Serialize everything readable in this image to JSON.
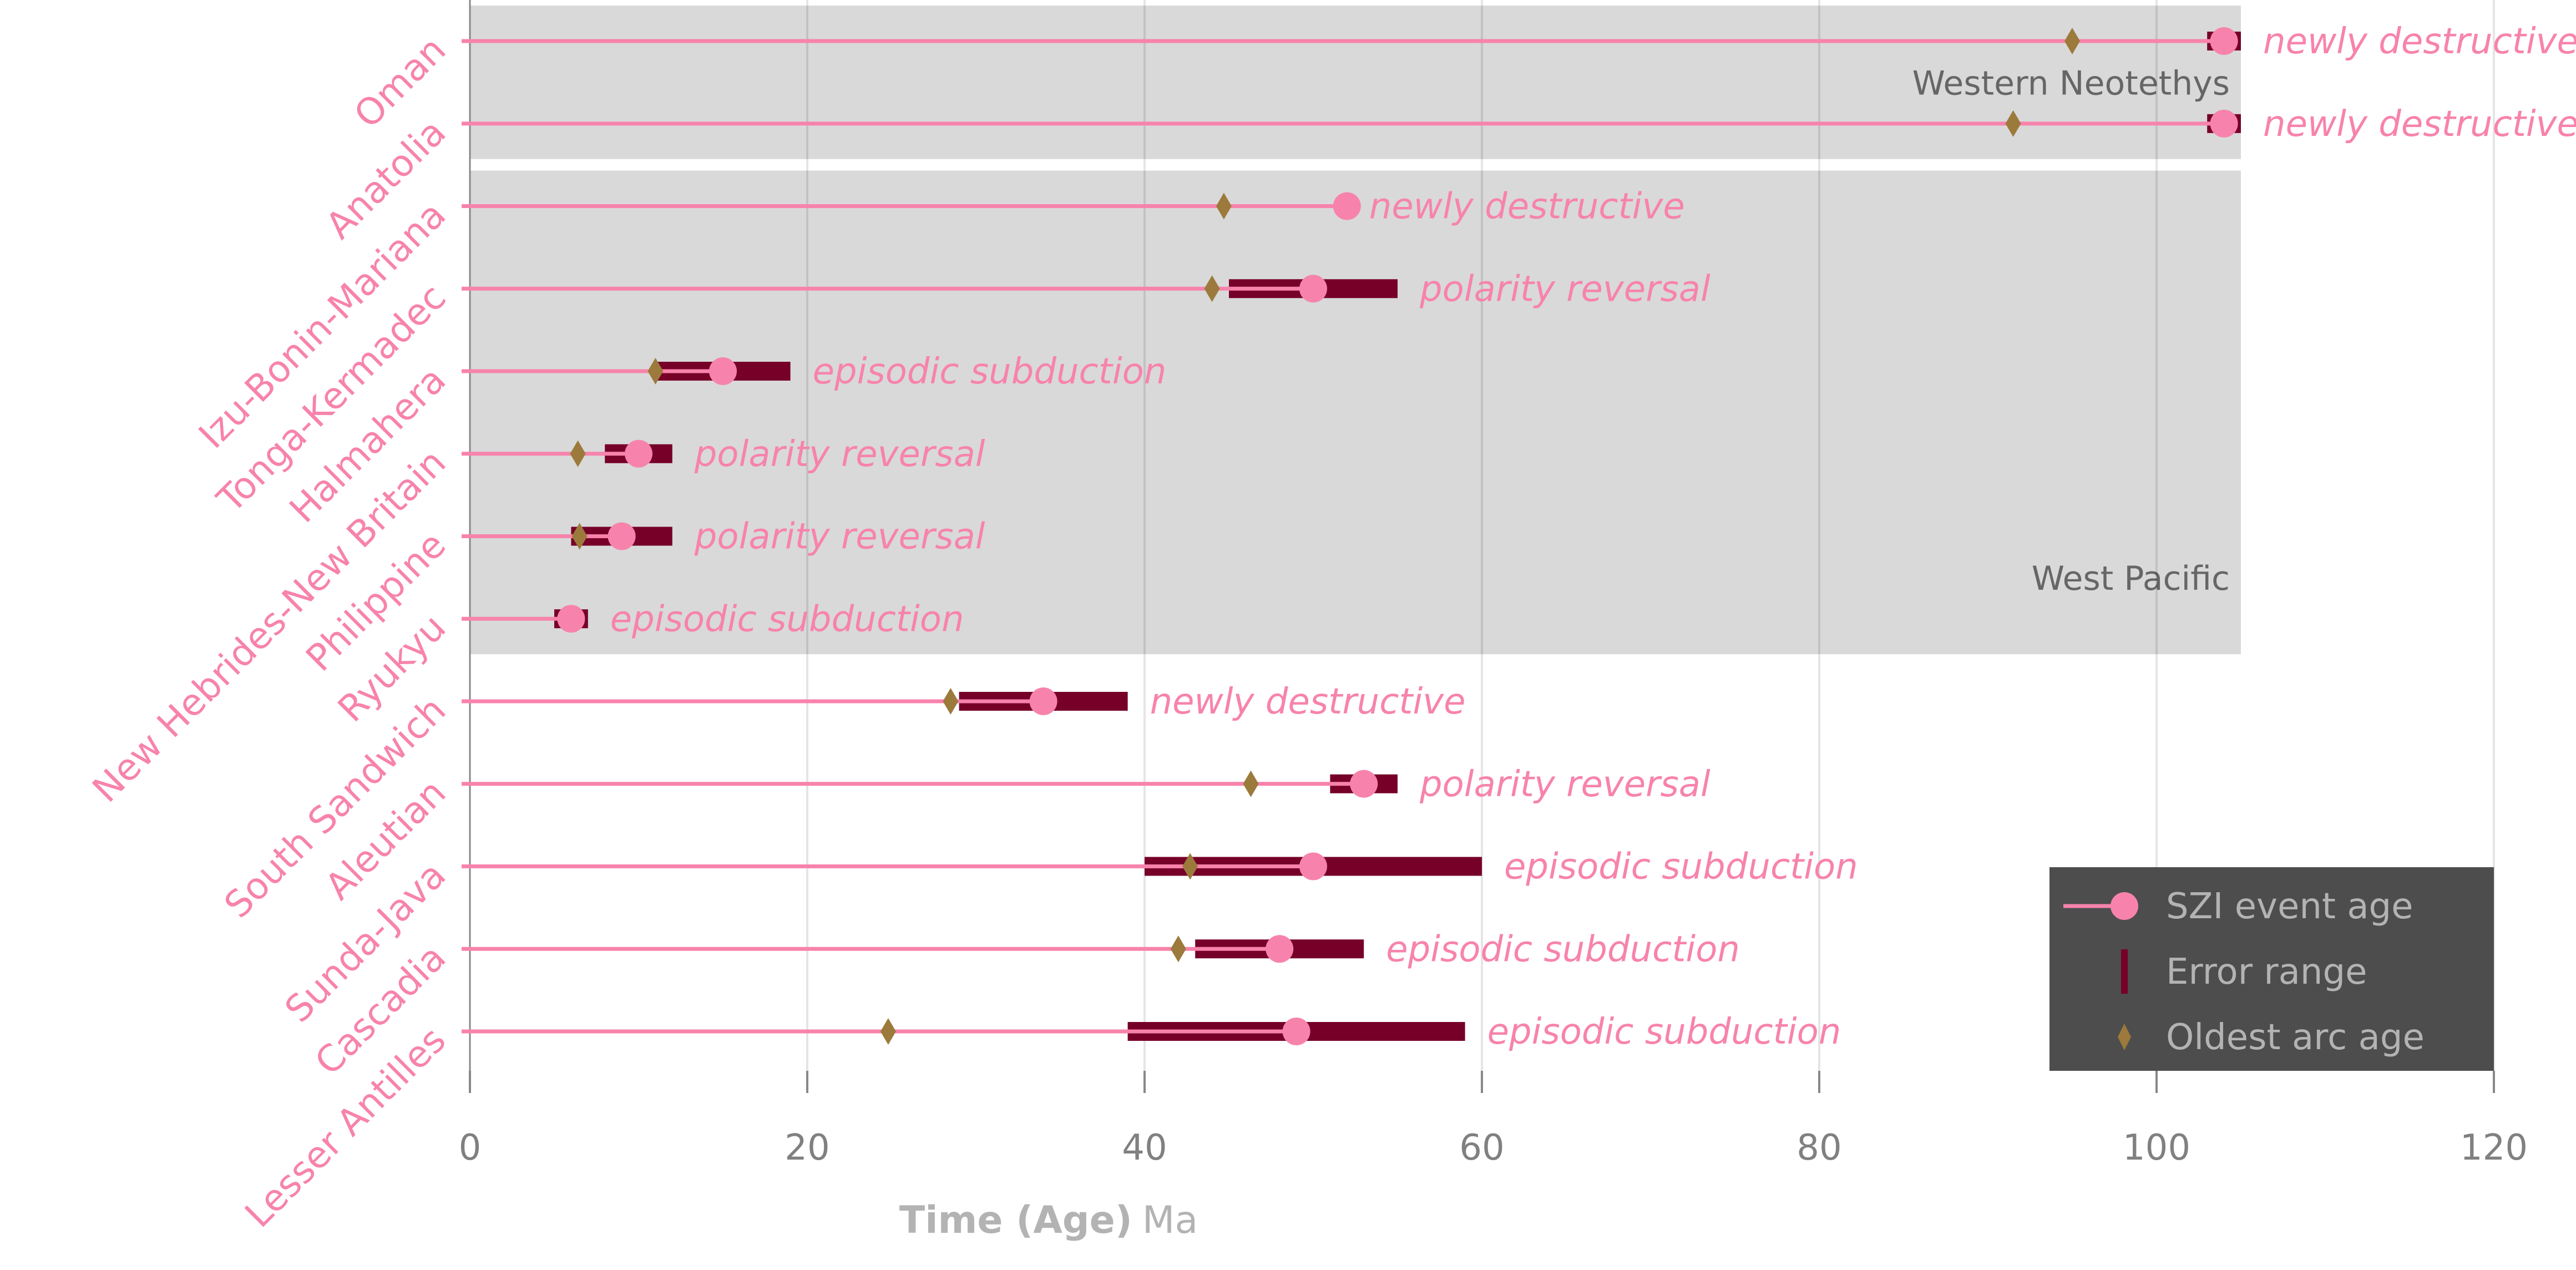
{
  "chart_data": {
    "type": "scatter",
    "xlabel_bold": "Time (Age)",
    "xlabel_unit": "Ma",
    "xlim": [
      0,
      120
    ],
    "xticks": [
      0,
      20,
      40,
      60,
      80,
      100,
      120
    ],
    "grid": true,
    "legend_placement": "bottom-right",
    "colors": {
      "event": "#f783ac",
      "error": "#760028",
      "arc": "#9c7a3c",
      "region_fill": "#d9d9d9",
      "legend_bg": "#4d4d4d",
      "region_text": "#666666"
    },
    "legend": [
      {
        "label": "SZI event age",
        "marker": "line-circle"
      },
      {
        "label": "Error range",
        "marker": "bar"
      },
      {
        "label": "Oldest arc age",
        "marker": "diamond"
      }
    ],
    "regions": [
      {
        "label": "Western Neotethys",
        "from_row": 0,
        "to_row": 1,
        "x_end": 105
      },
      {
        "label": "West Pacific",
        "from_row": 2,
        "to_row": 7,
        "x_end": 105
      }
    ],
    "rows": [
      {
        "name": "Oman",
        "event": 104,
        "error": [
          103,
          105
        ],
        "arc": 95,
        "type": "newly destructive"
      },
      {
        "name": "Anatolia",
        "event": 104,
        "error": [
          103,
          105
        ],
        "arc": 91.5,
        "type": "newly destructive"
      },
      {
        "name": "Izu-Bonin-Mariana",
        "event": 52,
        "error": null,
        "arc": 44.7,
        "type": "newly destructive"
      },
      {
        "name": "Tonga-Kermadec",
        "event": 50,
        "error": [
          45,
          55
        ],
        "arc": 44,
        "type": "polarity reversal"
      },
      {
        "name": "Halmahera",
        "event": 15,
        "error": [
          11,
          19
        ],
        "arc": 11,
        "type": "episodic subduction"
      },
      {
        "name": "New Hebrides-New Britain",
        "event": 10,
        "error": [
          8,
          12
        ],
        "arc": 6.4,
        "type": "polarity reversal"
      },
      {
        "name": "Philippine",
        "event": 9,
        "error": [
          6,
          12
        ],
        "arc": 6.5,
        "type": "polarity reversal"
      },
      {
        "name": "Ryukyu",
        "event": 6,
        "error": [
          5,
          7
        ],
        "arc": 6.3,
        "type": "episodic subduction"
      },
      {
        "name": "South Sandwich",
        "event": 34,
        "error": [
          29,
          39
        ],
        "arc": 28.5,
        "type": "newly destructive"
      },
      {
        "name": "Aleutian",
        "event": 53,
        "error": [
          51,
          55
        ],
        "arc": 46.3,
        "type": "polarity reversal"
      },
      {
        "name": "Sunda-Java",
        "event": 50,
        "error": [
          40,
          60
        ],
        "arc": 42.7,
        "type": "episodic subduction"
      },
      {
        "name": "Cascadia",
        "event": 48,
        "error": [
          43,
          53
        ],
        "arc": 42,
        "type": "episodic subduction"
      },
      {
        "name": "Lesser Antilles",
        "event": 49,
        "error": [
          39,
          59
        ],
        "arc": 24.8,
        "type": "episodic subduction"
      }
    ]
  }
}
